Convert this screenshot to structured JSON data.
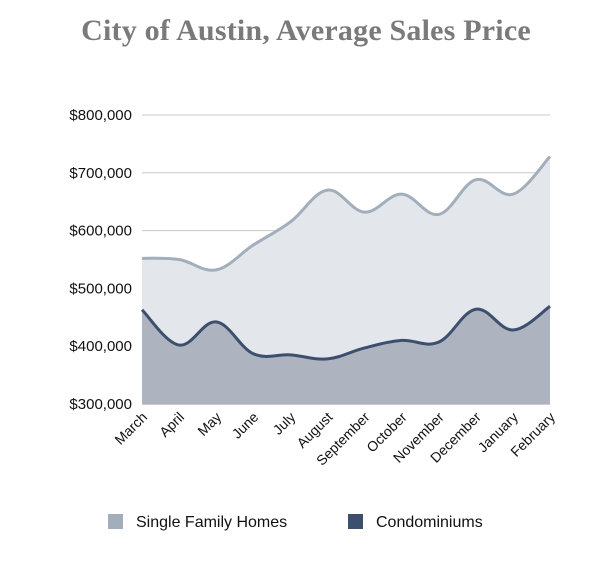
{
  "chart_data": {
    "type": "area",
    "title": "City of Austin, Average Sales Price",
    "xlabel": "",
    "ylabel": "",
    "categories": [
      "March",
      "April",
      "May",
      "June",
      "July",
      "August",
      "September",
      "October",
      "November",
      "December",
      "January",
      "February"
    ],
    "ylim": [
      300000,
      800000
    ],
    "yticks": [
      "$300,000",
      "$400,000",
      "$500,000",
      "$600,000",
      "$700,000",
      "$800,000"
    ],
    "ytick_values": [
      300000,
      400000,
      500000,
      600000,
      700000,
      800000
    ],
    "grid": true,
    "legend_position": "bottom",
    "series": [
      {
        "name": "Single Family Homes",
        "color": "#a3aebc",
        "fill": "#e3e6eb",
        "values": [
          552000,
          550000,
          532000,
          575000,
          615000,
          670000,
          632000,
          663000,
          628000,
          688000,
          663000,
          728000
        ]
      },
      {
        "name": "Condominiums",
        "color": "#3d4f6e",
        "fill": "#aeb3c0",
        "values": [
          463000,
          402000,
          442000,
          387000,
          385000,
          378000,
          397000,
          410000,
          407000,
          464000,
          428000,
          469000
        ]
      }
    ]
  }
}
